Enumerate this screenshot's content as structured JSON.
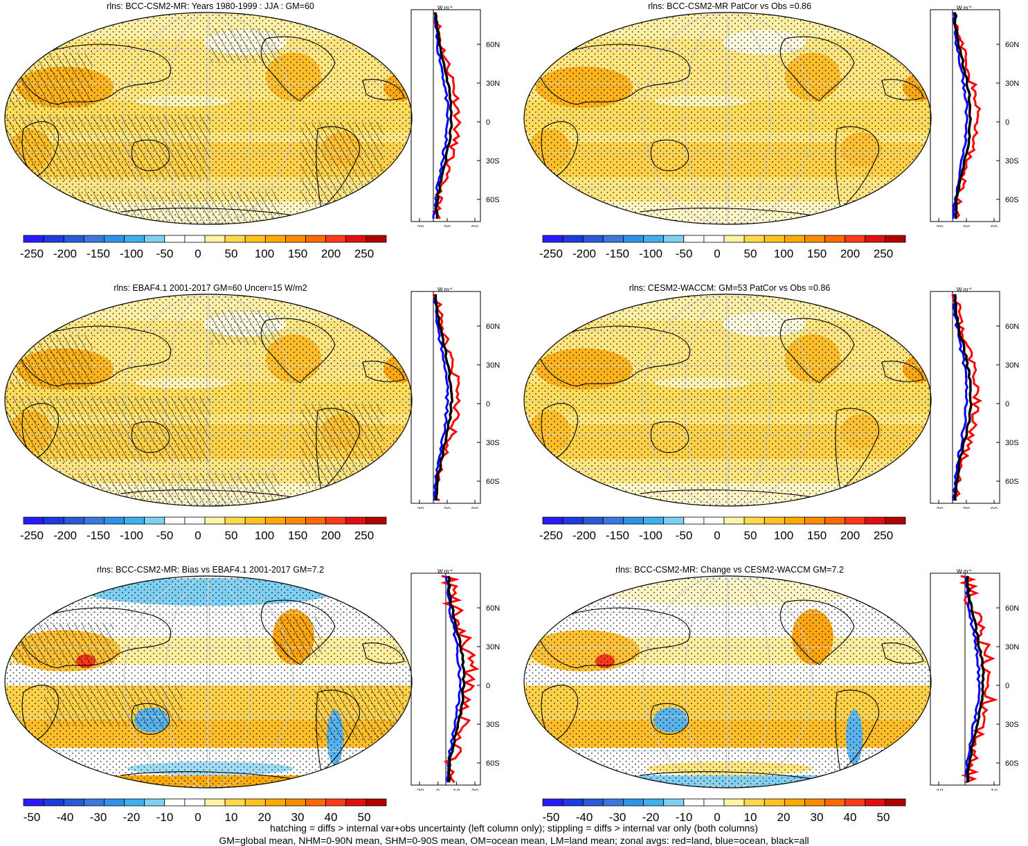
{
  "panels": [
    {
      "title": "rlns: BCC-CSM2-MR: Years 1980-1999 : JJA : GM=60",
      "kind": "abs",
      "hatch": "strong",
      "xticks": [
        "-30",
        "30",
        "90"
      ],
      "colorbar": [
        "-250",
        "-200",
        "-150",
        "-100",
        "-50",
        "0",
        "50",
        "100",
        "150",
        "200",
        "250"
      ]
    },
    {
      "title": "rlns: BCC-CSM2-MR PatCor vs Obs =0.86",
      "kind": "abs",
      "hatch": "none",
      "xticks": [
        "-30",
        "30",
        "90"
      ],
      "colorbar": [
        "-250",
        "-200",
        "-150",
        "-100",
        "-50",
        "0",
        "50",
        "100",
        "150",
        "200",
        "250"
      ]
    },
    {
      "title": "rlns: EBAF4.1 2001-2017 GM=60 Uncer=15 W/m2",
      "kind": "abs",
      "hatch": "strong",
      "xticks": [
        "-30",
        "30",
        "90"
      ],
      "colorbar": [
        "-250",
        "-200",
        "-150",
        "-100",
        "-50",
        "0",
        "50",
        "100",
        "150",
        "200",
        "250"
      ]
    },
    {
      "title": "rlns: CESM2-WACCM: GM=53 PatCor vs Obs =0.86",
      "kind": "abs",
      "hatch": "none",
      "xticks": [
        "-30",
        "30",
        "90"
      ],
      "colorbar": [
        "-250",
        "-200",
        "-150",
        "-100",
        "-50",
        "0",
        "50",
        "100",
        "150",
        "200",
        "250"
      ]
    },
    {
      "title": "rlns: BCC-CSM2-MR: Bias vs EBAF4.1 2001-2017 GM=7.2",
      "kind": "diff",
      "hatch": "some",
      "xticks": [
        "-20",
        "0",
        "10",
        "20"
      ],
      "colorbar": [
        "-50",
        "-40",
        "-30",
        "-20",
        "-10",
        "0",
        "10",
        "20",
        "30",
        "40",
        "50"
      ]
    },
    {
      "title": "rlns: BCC-CSM2-MR: Change vs CESM2-WACCM GM=7.2",
      "kind": "diff",
      "hatch": "none",
      "xticks": [
        "-10",
        "10"
      ],
      "colorbar": [
        "-50",
        "-40",
        "-30",
        "-20",
        "-10",
        "0",
        "10",
        "20",
        "30",
        "40",
        "50"
      ]
    }
  ],
  "lat_labels": [
    "60N",
    "30N",
    "0",
    "30S",
    "60S"
  ],
  "units": "W m",
  "units_sup": "-2",
  "colorbar_colors": [
    "#2a1aff",
    "#1f3ae0",
    "#2a5ad8",
    "#3a78e0",
    "#2e94e8",
    "#3fb0ee",
    "#7fd0f2",
    "#ffffff",
    "#ffffff",
    "#fff3a8",
    "#ffd94d",
    "#ffc21e",
    "#ffaa00",
    "#ff8c00",
    "#ff6a00",
    "#ff3a1a",
    "#e01010",
    "#b00000"
  ],
  "footnote": {
    "line1": "hatching = diffs > internal var+obs uncertainty (left column only); stippling = diffs > internal var only (both columns)",
    "line2": "GM=global mean, NHM=0-90N mean, SHM=0-90S mean, OM=ocean mean, LM=land mean; zonal avgs: red=land, blue=ocean, black=all"
  },
  "legend": {
    "red": "land",
    "blue": "ocean",
    "black": "all"
  }
}
